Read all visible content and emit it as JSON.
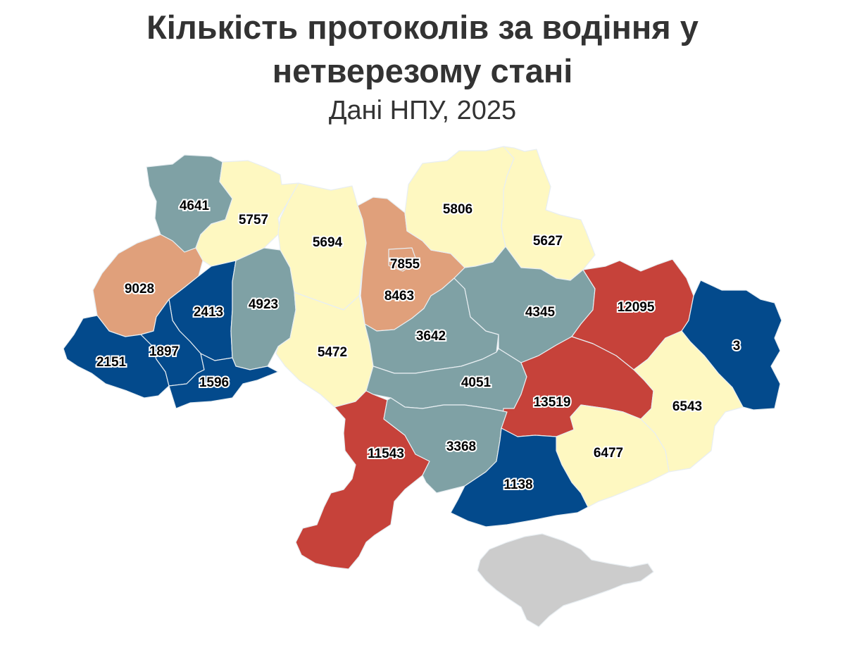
{
  "title_line1": "Кількість протоколів за водіння у",
  "title_line2": "нетверезому стані",
  "subtitle": "Дані НПУ, 2025",
  "colors": {
    "very_low": "#034a8c",
    "low": "#7fa1a5",
    "medium": "#fef8c1",
    "high": "#e0a07b",
    "very_high": "#c6423a",
    "no_data": "#cccccc"
  },
  "regions": [
    {
      "id": "volyn",
      "value": "4641",
      "level": "low"
    },
    {
      "id": "rivne",
      "value": "5757",
      "level": "medium"
    },
    {
      "id": "zhytomyr",
      "value": "5694",
      "level": "medium"
    },
    {
      "id": "kyiv-oblast",
      "value": "7855",
      "level": "high"
    },
    {
      "id": "kyiv-city",
      "value": "8463",
      "level": "high"
    },
    {
      "id": "chernihiv",
      "value": "5806",
      "level": "medium"
    },
    {
      "id": "sumy",
      "value": "5627",
      "level": "medium"
    },
    {
      "id": "lviv",
      "value": "9028",
      "level": "high"
    },
    {
      "id": "ternopil",
      "value": "2413",
      "level": "very_low"
    },
    {
      "id": "khmelnytskyi",
      "value": "4923",
      "level": "low"
    },
    {
      "id": "vinnytsia",
      "value": "5472",
      "level": "medium"
    },
    {
      "id": "cherkasy",
      "value": "3642",
      "level": "low"
    },
    {
      "id": "poltava",
      "value": "4345",
      "level": "low"
    },
    {
      "id": "kharkiv",
      "value": "12095",
      "level": "very_high"
    },
    {
      "id": "luhansk",
      "value": "3",
      "level": "very_low"
    },
    {
      "id": "zakarpattia",
      "value": "2151",
      "level": "very_low"
    },
    {
      "id": "ivano-frankivsk",
      "value": "1897",
      "level": "very_low"
    },
    {
      "id": "chernivtsi",
      "value": "1596",
      "level": "very_low"
    },
    {
      "id": "kirovohrad",
      "value": "4051",
      "level": "low"
    },
    {
      "id": "dnipropetrovsk",
      "value": "13519",
      "level": "very_high"
    },
    {
      "id": "donetsk",
      "value": "6543",
      "level": "medium"
    },
    {
      "id": "odesa",
      "value": "11543",
      "level": "very_high"
    },
    {
      "id": "mykolaiv",
      "value": "3368",
      "level": "low"
    },
    {
      "id": "zaporizhzhia",
      "value": "6477",
      "level": "medium"
    },
    {
      "id": "kherson",
      "value": "1138",
      "level": "very_low"
    },
    {
      "id": "crimea",
      "value": "",
      "level": "no_data"
    }
  ]
}
